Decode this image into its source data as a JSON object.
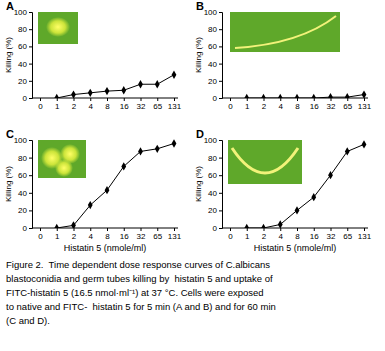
{
  "chart_data": [
    {
      "type": "line",
      "title": "A",
      "categories": [
        "0",
        "1",
        "2",
        "4",
        "8",
        "16",
        "32",
        "65",
        "131"
      ],
      "values": [
        null,
        0,
        4,
        6,
        8,
        9,
        16,
        16,
        27
      ],
      "color": "#000000",
      "marker": "diamond",
      "ylim": [
        0,
        100
      ],
      "yticks": [
        0,
        20,
        40,
        60,
        80,
        100
      ],
      "y_label": "Killing (%)",
      "grid": false
    },
    {
      "type": "line",
      "title": "B",
      "categories": [
        "0",
        "1",
        "2",
        "4",
        "8",
        "16",
        "32",
        "65",
        "131"
      ],
      "values": [
        null,
        0,
        0,
        0,
        0,
        0,
        1,
        1,
        4
      ],
      "color": "#000000",
      "marker": "diamond",
      "ylim": [
        0,
        100
      ],
      "yticks": [
        0,
        20,
        40,
        60,
        80,
        100
      ],
      "y_label": "Killing (%)",
      "grid": false
    },
    {
      "type": "line",
      "title": "C",
      "categories": [
        "0",
        "1",
        "2",
        "4",
        "8",
        "16",
        "32",
        "65",
        "131"
      ],
      "values": [
        null,
        0,
        3,
        26,
        43,
        70,
        87,
        90,
        96
      ],
      "color": "#000000",
      "marker": "diamond",
      "ylim": [
        0,
        100
      ],
      "yticks": [
        0,
        20,
        40,
        60,
        80,
        100
      ],
      "y_label": "Killing (%)",
      "x_label": "Histatin 5 (nmole/ml)",
      "grid": false
    },
    {
      "type": "line",
      "title": "D",
      "categories": [
        "0",
        "1",
        "2",
        "4",
        "8",
        "16",
        "32",
        "65",
        "131"
      ],
      "values": [
        null,
        0,
        0,
        4,
        20,
        35,
        60,
        87,
        95
      ],
      "color": "#000000",
      "marker": "diamond",
      "ylim": [
        0,
        100
      ],
      "yticks": [
        0,
        20,
        40,
        60,
        80,
        100
      ],
      "y_label": "Killing (%)",
      "x_label": "Histatin 5 (nmole/ml)",
      "grid": false
    }
  ],
  "caption": [
    "Figure 2.  Time dependent dose response curves of C.albicans",
    "blastoconidia and germ tubes killing by  histatin 5 and uptake of",
    "FITC-histatin 5 (16.5 nmol·ml⁻¹) at 37 °C. Cells were exposed",
    "to native and FITC-  histatin 5 for 5 min (A and B) and for 60 min",
    "(C and D)."
  ]
}
